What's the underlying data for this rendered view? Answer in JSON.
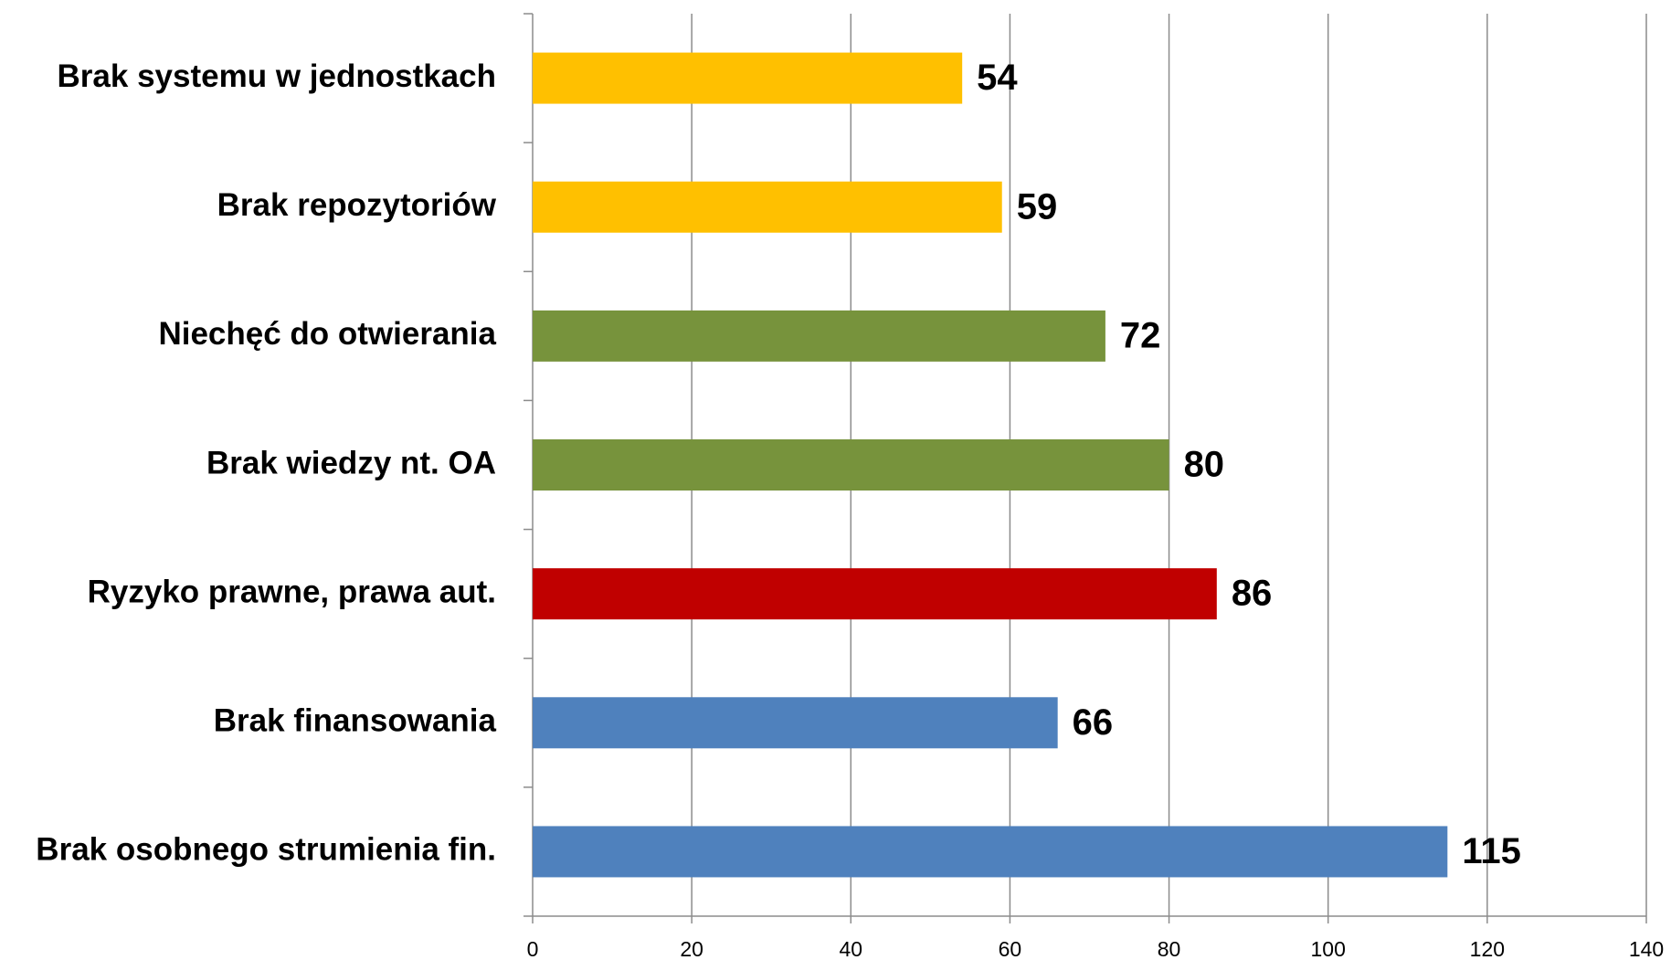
{
  "chart_data": {
    "type": "hbar",
    "categories": [
      "Brak systemu w jednostkach",
      "Brak repozytoriów",
      "Niechęć do otwierania",
      "Brak wiedzy nt. OA",
      "Ryzyko prawne, prawa aut.",
      "Brak finansowania",
      "Brak osobnego strumienia fin."
    ],
    "values": [
      54,
      59,
      72,
      80,
      86,
      66,
      115
    ],
    "colors": [
      "#ffc000",
      "#ffc000",
      "#77933c",
      "#77933c",
      "#c00000",
      "#4f81bd",
      "#4f81bd"
    ],
    "xlim": [
      0,
      140
    ],
    "xticks": [
      0,
      20,
      40,
      60,
      80,
      100,
      120,
      140
    ],
    "grid": true
  }
}
